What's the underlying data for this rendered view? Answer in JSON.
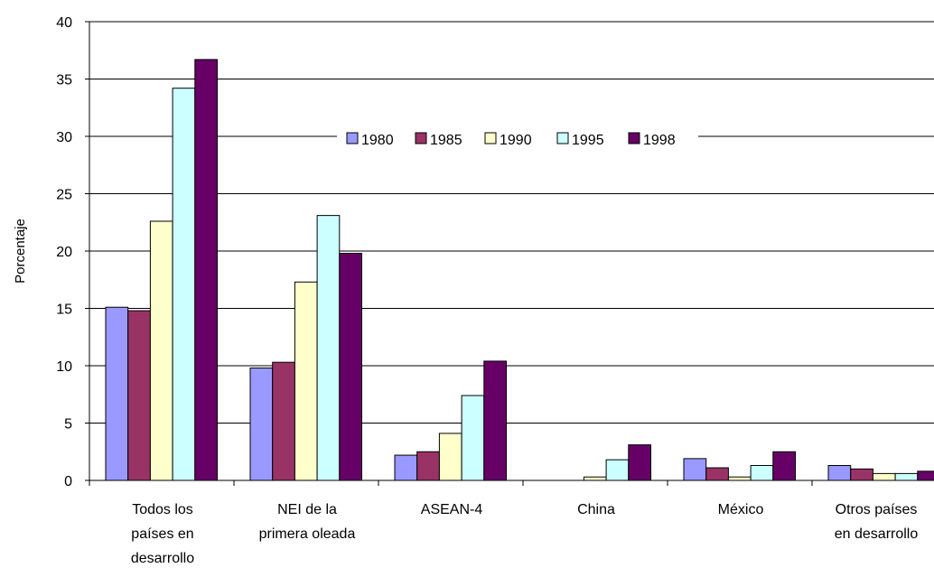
{
  "chart_data": {
    "type": "bar",
    "title": "",
    "xlabel": "",
    "ylabel": "Porcentaje",
    "ylim": [
      0,
      40
    ],
    "yticks": [
      0,
      5,
      10,
      15,
      20,
      25,
      30,
      35,
      40
    ],
    "grid": true,
    "legend_position": "top-center",
    "categories": [
      [
        "Todos los",
        "países en",
        "desarrollo"
      ],
      [
        "NEI de la",
        "primera oleada"
      ],
      [
        "ASEAN-4"
      ],
      [
        "China"
      ],
      [
        "México"
      ],
      [
        "Otros países",
        "en desarrollo"
      ]
    ],
    "series": [
      {
        "name": "1980",
        "color": "#9999ff",
        "values": [
          15.1,
          9.8,
          2.2,
          0.0,
          1.9,
          1.3
        ]
      },
      {
        "name": "1985",
        "color": "#993366",
        "values": [
          14.8,
          10.3,
          2.5,
          0.0,
          1.1,
          1.0
        ]
      },
      {
        "name": "1990",
        "color": "#ffffcc",
        "values": [
          22.6,
          17.3,
          4.1,
          0.3,
          0.3,
          0.6
        ]
      },
      {
        "name": "1995",
        "color": "#ccffff",
        "values": [
          34.2,
          23.1,
          7.4,
          1.8,
          1.3,
          0.6
        ]
      },
      {
        "name": "1998",
        "color": "#660066",
        "values": [
          36.7,
          19.8,
          10.4,
          3.1,
          2.5,
          0.8
        ]
      }
    ]
  }
}
